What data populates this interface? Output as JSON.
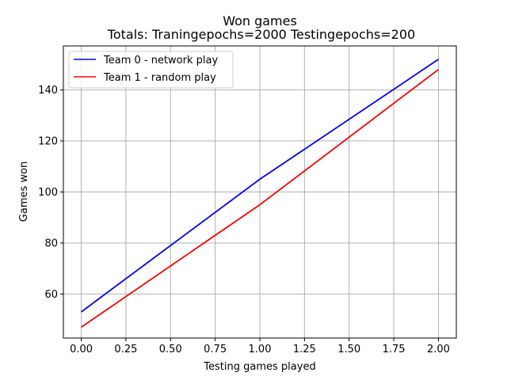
{
  "chart_data": {
    "type": "line",
    "title": "Won games",
    "subtitle": "Totals: Traningepochs=2000 Testingepochs=200",
    "xlabel": "Testing games played",
    "ylabel": "Games won",
    "x": [
      0,
      1,
      2
    ],
    "series": [
      {
        "name": "Team 0 - network play",
        "color": "#0000ff",
        "values": [
          53,
          105,
          152
        ]
      },
      {
        "name": "Team 1 - random play",
        "color": "#ff0000",
        "values": [
          47,
          95,
          148
        ]
      }
    ],
    "xlim": [
      -0.1,
      2.1
    ],
    "ylim": [
      42.75,
      157.25
    ],
    "xticks": [
      0,
      0.25,
      0.5,
      0.75,
      1,
      1.25,
      1.5,
      1.75,
      2
    ],
    "xtick_labels": [
      "0.00",
      "0.25",
      "0.50",
      "0.75",
      "1.00",
      "1.25",
      "1.50",
      "1.75",
      "2.00"
    ],
    "yticks": [
      60,
      80,
      100,
      120,
      140
    ],
    "ytick_labels": [
      "60",
      "80",
      "100",
      "120",
      "140"
    ],
    "grid": true,
    "legend_position": "upper-left"
  }
}
